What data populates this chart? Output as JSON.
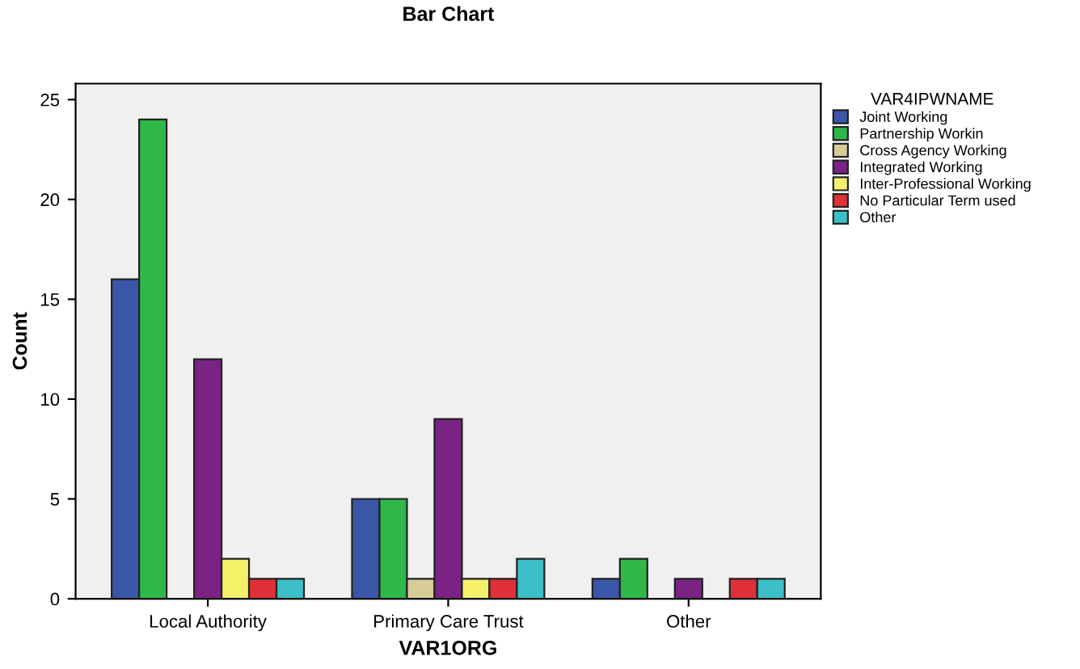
{
  "chart_data": {
    "type": "bar",
    "title": "Bar Chart",
    "xlabel": "VAR1ORG",
    "ylabel": "Count",
    "legend_title": "VAR4IPWNAME",
    "categories": [
      "Local Authority",
      "Primary Care Trust",
      "Other"
    ],
    "series": [
      {
        "name": "Joint Working",
        "color": "#3a56a8",
        "values": [
          16,
          5,
          1
        ]
      },
      {
        "name": "Partnership Workin",
        "color": "#2eb84a",
        "values": [
          24,
          5,
          2
        ]
      },
      {
        "name": "Cross Agency Working",
        "color": "#d6cc96",
        "values": [
          null,
          1,
          null
        ]
      },
      {
        "name": "Integrated Working",
        "color": "#7a2384",
        "values": [
          12,
          9,
          1
        ]
      },
      {
        "name": "Inter-Professional Working",
        "color": "#f5f06a",
        "values": [
          2,
          1,
          null
        ]
      },
      {
        "name": "No Particular Term used",
        "color": "#e0303a",
        "values": [
          1,
          1,
          1
        ]
      },
      {
        "name": "Other",
        "color": "#3cbfc8",
        "values": [
          1,
          2,
          1
        ]
      }
    ],
    "ylim": [
      0,
      25.8
    ],
    "yticks": [
      0,
      5,
      10,
      15,
      20,
      25
    ],
    "grid": false,
    "legend": "right"
  }
}
